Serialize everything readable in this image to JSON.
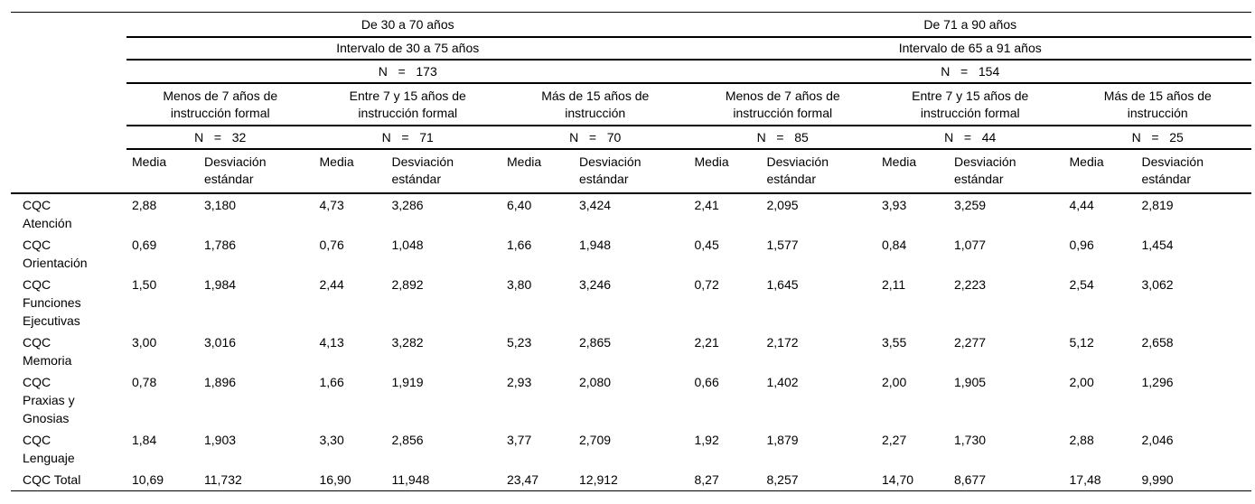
{
  "table": {
    "col_groups": [
      {
        "age_range": "De 30 a 70 años",
        "interval": "Intervalo de 30 a 75 años",
        "n_label": "N   =   173"
      },
      {
        "age_range": "De 71 a 90 años",
        "interval": "Intervalo de 65 a 91 años",
        "n_label": "N   =   154"
      }
    ],
    "edu_groups": [
      {
        "label": "Menos de 7 años de\ninstrucción formal",
        "n_label": "N   =   32"
      },
      {
        "label": "Entre 7 y 15 años de\ninstrucción formal",
        "n_label": "N   =   71"
      },
      {
        "label": "Más de 15 años de\ninstrucción",
        "n_label": "N   =   70"
      },
      {
        "label": "Menos de 7 años de\ninstrucción formal",
        "n_label": "N   =   85"
      },
      {
        "label": "Entre 7 y 15 años de\ninstrucción formal",
        "n_label": "N   =   44"
      },
      {
        "label": "Más de 15 años de\ninstrucción",
        "n_label": "N   =   25"
      }
    ],
    "measure_headers": {
      "mean": "Media",
      "sd": "Desviación\nestándar"
    },
    "rows": [
      {
        "label": "CQC\nAtención",
        "values": [
          "2,88",
          "3,180",
          "4,73",
          "3,286",
          "6,40",
          "3,424",
          "2,41",
          "2,095",
          "3,93",
          "3,259",
          "4,44",
          "2,819"
        ]
      },
      {
        "label": "CQC\nOrientación",
        "values": [
          "0,69",
          "1,786",
          "0,76",
          "1,048",
          "1,66",
          "1,948",
          "0,45",
          "1,577",
          "0,84",
          "1,077",
          "0,96",
          "1,454"
        ]
      },
      {
        "label": "CQC\nFunciones\nEjecutivas",
        "values": [
          "1,50",
          "1,984",
          "2,44",
          "2,892",
          "3,80",
          "3,246",
          "0,72",
          "1,645",
          "2,11",
          "2,223",
          "2,54",
          "3,062"
        ]
      },
      {
        "label": "CQC\nMemoria",
        "values": [
          "3,00",
          "3,016",
          "4,13",
          "3,282",
          "5,23",
          "2,865",
          "2,21",
          "2,172",
          "3,55",
          "2,277",
          "5,12",
          "2,658"
        ]
      },
      {
        "label": "CQC\nPraxias y\nGnosias",
        "values": [
          "0,78",
          "1,896",
          "1,66",
          "1,919",
          "2,93",
          "2,080",
          "0,66",
          "1,402",
          "2,00",
          "1,905",
          "2,00",
          "1,296"
        ]
      },
      {
        "label": "CQC\nLenguaje",
        "values": [
          "1,84",
          "1,903",
          "3,30",
          "2,856",
          "3,77",
          "2,709",
          "1,92",
          "1,879",
          "2,27",
          "1,730",
          "2,88",
          "2,046"
        ]
      },
      {
        "label": "CQC Total",
        "values": [
          "10,69",
          "11,732",
          "16,90",
          "11,948",
          "23,47",
          "12,912",
          "8,27",
          "8,257",
          "14,70",
          "8,677",
          "17,48",
          "9,990"
        ]
      }
    ]
  }
}
